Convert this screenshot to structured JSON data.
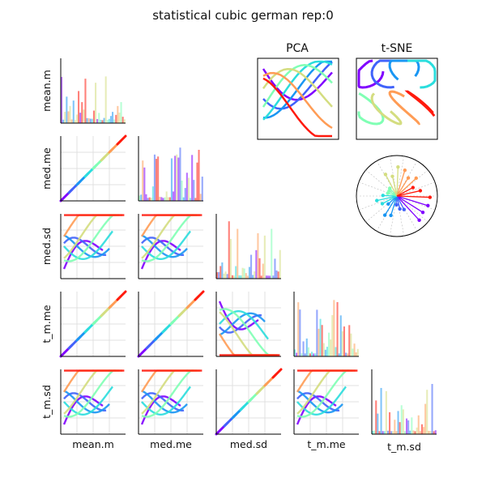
{
  "chart_data": {
    "type": "scatter",
    "title": "statistical cubic german rep:0",
    "variables": [
      "mean.m",
      "med.me",
      "med.sd",
      "t_m.me",
      "t_m.sd"
    ],
    "layout": "scatter-matrix (lower triangle scatter, diagonal histograms)",
    "grid": true,
    "insets": [
      {
        "type": "scatter",
        "title": "PCA"
      },
      {
        "type": "scatter",
        "title": "t-SNE"
      },
      {
        "type": "polar-star",
        "title": ""
      }
    ],
    "series_colors": [
      "#8000ff",
      "#4062fa",
      "#1996f3",
      "#2adddd",
      "#80ffb4",
      "#d4dd80",
      "#ff9c55",
      "#ff1a0d"
    ],
    "matrix_relations": {
      "mean.m|med.me": "near-identity diagonal",
      "mean.m|t_m.me": "near-identity diagonal",
      "med.me|t_m.me": "near-identity diagonal",
      "med.sd|t_m.sd": "near-identity diagonal",
      "other": "curved fan of colored trajectories"
    }
  }
}
